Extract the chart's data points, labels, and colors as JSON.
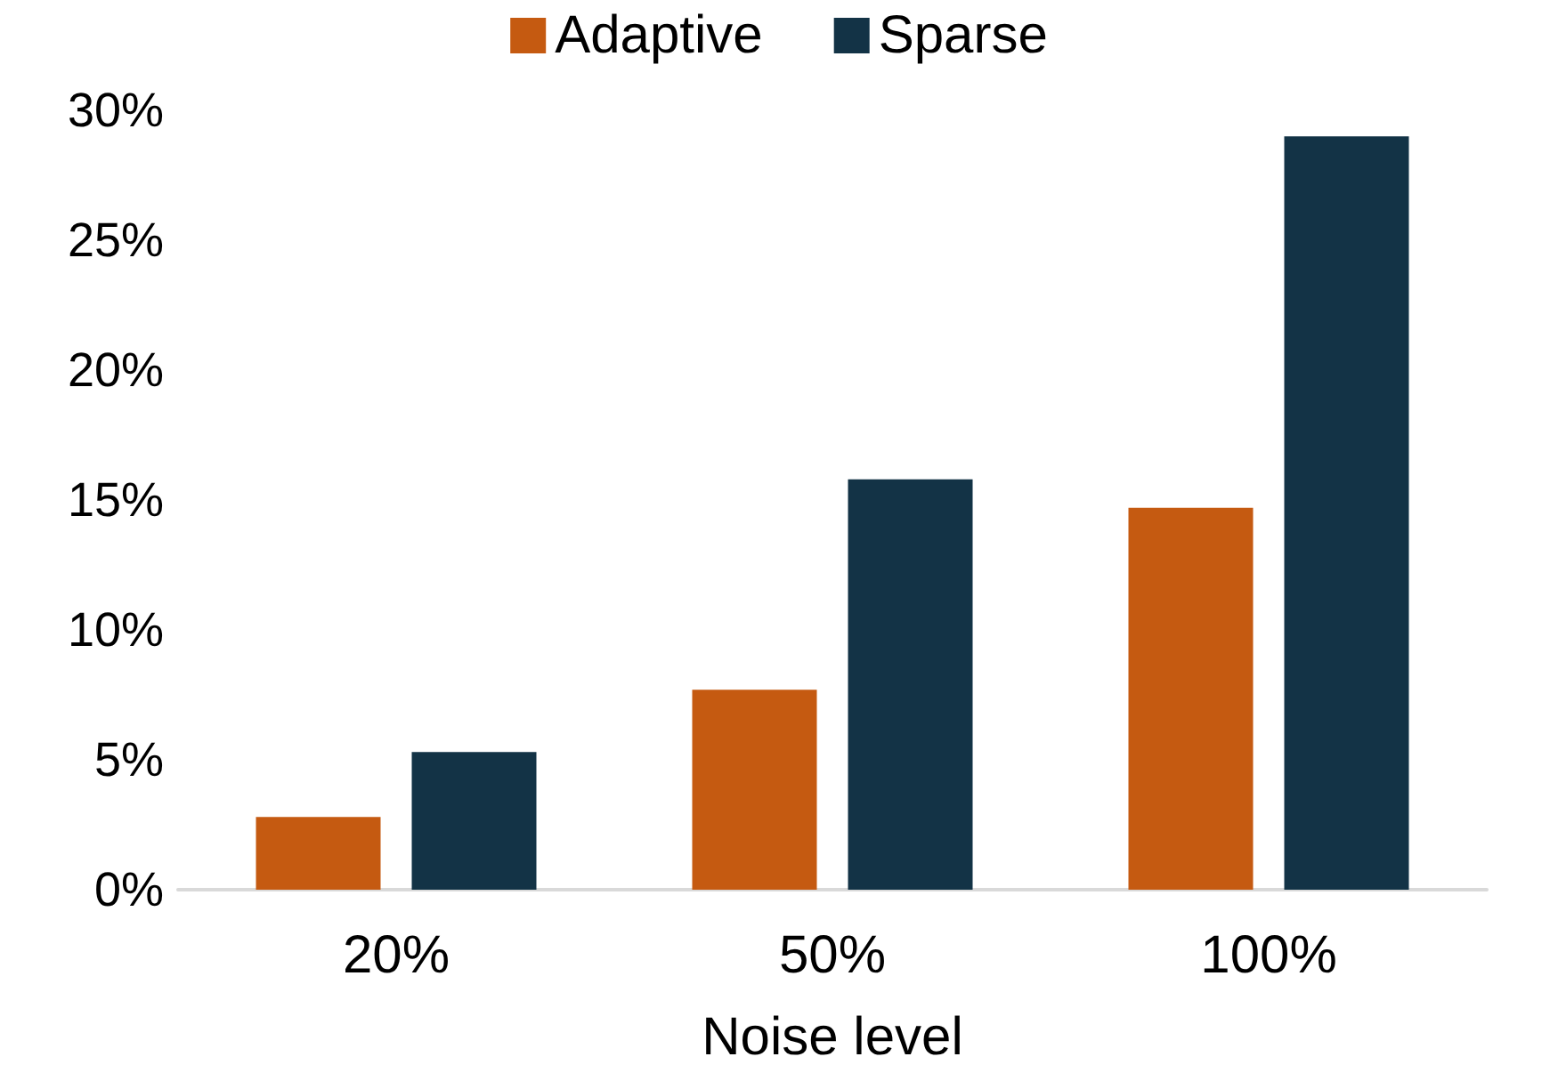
{
  "chart_data": {
    "type": "bar",
    "xlabel": "Noise level",
    "categories": [
      "20%",
      "50%",
      "100%"
    ],
    "series": [
      {
        "name": "Adaptive",
        "color": "#c55a11",
        "values": [
          2.8,
          7.7,
          14.7
        ]
      },
      {
        "name": "Sparse",
        "color": "#133346",
        "values": [
          5.3,
          15.8,
          29.0
        ]
      }
    ],
    "ylim": [
      0,
      30
    ],
    "yticks": [
      {
        "value": 0,
        "label": "0%"
      },
      {
        "value": 5,
        "label": "5%"
      },
      {
        "value": 10,
        "label": "10%"
      },
      {
        "value": 15,
        "label": "15%"
      },
      {
        "value": 20,
        "label": "20%"
      },
      {
        "value": 25,
        "label": "25%"
      },
      {
        "value": 30,
        "label": "30%"
      }
    ],
    "grid": false,
    "legend": "top"
  }
}
